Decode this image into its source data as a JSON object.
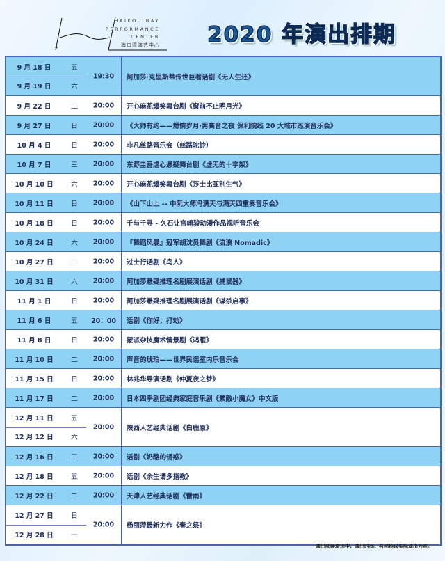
{
  "logo": {
    "line1": "HAIKOU BAY",
    "line2": "PERFORMANCE",
    "line3": "CENTER",
    "cn": "海口湾演艺中心"
  },
  "title": "2020 年演出排期",
  "colors": {
    "row_blue": "#8fd3f4",
    "border": "#4a63b5",
    "title": "#1b5a98"
  },
  "rows": [
    {
      "dates": [
        [
          "9 月 18 日",
          "五"
        ],
        [
          "9 月 19 日",
          "六"
        ]
      ],
      "time": "19:30",
      "name": "阿加莎·克里斯蒂传世巨著话剧《无人生还》",
      "bg": "blue"
    },
    {
      "dates": [
        [
          "9 月 22 日",
          "二"
        ]
      ],
      "time": "20:00",
      "name": "开心麻花爆笑舞台剧《窗前不止明月光》",
      "bg": "white"
    },
    {
      "dates": [
        [
          "9 月 27 日",
          "日"
        ]
      ],
      "time": "20:00",
      "name": "《大师有约——燃情岁月·男高音之夜 保利院线 20 大城市巡演音乐会》",
      "bg": "blue"
    },
    {
      "dates": [
        [
          "10 月 4 日",
          "日"
        ]
      ],
      "time": "20:00",
      "name": "非凡丝路音乐会（丝路驼铃）",
      "bg": "white"
    },
    {
      "dates": [
        [
          "10 月 7 日",
          "三"
        ]
      ],
      "time": "20:00",
      "name": "东野圭吾虐心悬疑舞台剧《虚无的十字架》",
      "bg": "blue"
    },
    {
      "dates": [
        [
          "10 月 10 日",
          "六"
        ]
      ],
      "time": "20:00",
      "name": "开心麻花爆笑舞台剧《莎士比亚别生气》",
      "bg": "white"
    },
    {
      "dates": [
        [
          "10 月 11 日",
          "日"
        ]
      ],
      "time": "20:00",
      "name": "《山下山上 -- 中阮大师冯满天与满天四重奏音乐会》",
      "bg": "blue"
    },
    {
      "dates": [
        [
          "10 月 18 日",
          "日"
        ]
      ],
      "time": "20:00",
      "name": "千与千寻 - 久石让宫崎骏动漫作品视听音乐会",
      "bg": "white"
    },
    {
      "dates": [
        [
          "10 月 24 日",
          "六"
        ]
      ],
      "time": "20:00",
      "name": "『舞蹈风暴』冠军胡沈员舞剧《流浪 Nomadic》",
      "bg": "blue"
    },
    {
      "dates": [
        [
          "10 月 27 日",
          "二"
        ]
      ],
      "time": "20:00",
      "name": "过士行话剧《鸟人》",
      "bg": "white"
    },
    {
      "dates": [
        [
          "10 月 31 日",
          "六"
        ]
      ],
      "time": "20:00",
      "name": "阿加莎悬疑推理名剧展演话剧《捕鼠器》",
      "bg": "blue"
    },
    {
      "dates": [
        [
          "11 月 1 日",
          "日"
        ]
      ],
      "time": "20:00",
      "name": "阿加莎悬疑推理名剧展演话剧《谋杀启事》",
      "bg": "white"
    },
    {
      "dates": [
        [
          "11 月 6 日",
          "五"
        ]
      ],
      "time": "20：00",
      "name": "话剧《你好，打劫》",
      "bg": "blue"
    },
    {
      "dates": [
        [
          "11 月 8 日",
          "日"
        ]
      ],
      "time": "20:00",
      "name": "蒙派杂技魔术情景剧《鸿雁》",
      "bg": "white"
    },
    {
      "dates": [
        [
          "11 月 10 日",
          "二"
        ]
      ],
      "time": "20:00",
      "name": "声音的琥珀——世界民谣室内乐音乐会",
      "bg": "blue"
    },
    {
      "dates": [
        [
          "11 月 15 日",
          "日"
        ]
      ],
      "time": "20:00",
      "name": "林兆华导演话剧《仲夏夜之梦》",
      "bg": "white"
    },
    {
      "dates": [
        [
          "11 月 17 日",
          "二"
        ]
      ],
      "time": "20:00",
      "name": "日本四季剧团经典家庭音乐剧《素敵小魔女》中文版",
      "bg": "blue"
    },
    {
      "dates": [
        [
          "12 月 11 日",
          "五"
        ],
        [
          "12 月 12 日",
          "六"
        ]
      ],
      "time": "20:00",
      "name": "陕西人艺经典话剧《白鹿原》",
      "bg": "white"
    },
    {
      "dates": [
        [
          "12 月 16 日",
          "三"
        ]
      ],
      "time": "20:00",
      "name": "话剧《奶酪的诱惑》",
      "bg": "blue"
    },
    {
      "dates": [
        [
          "12 月 18 日",
          "五"
        ]
      ],
      "time": "20:00",
      "name": "话剧《余生请多指教》",
      "bg": "white"
    },
    {
      "dates": [
        [
          "12 月 22 日",
          "二"
        ]
      ],
      "time": "20:00",
      "name": "天津人艺经典话剧《雷雨》",
      "bg": "blue"
    },
    {
      "dates": [
        [
          "12 月 27 日",
          "日"
        ],
        [
          "12 月 28 日",
          "一"
        ]
      ],
      "time": "20:00",
      "name": "杨丽萍最新力作《春之祭》",
      "bg": "white"
    }
  ],
  "note": "演出陆续增加中，演出时间、名称均以实际演出为准。"
}
